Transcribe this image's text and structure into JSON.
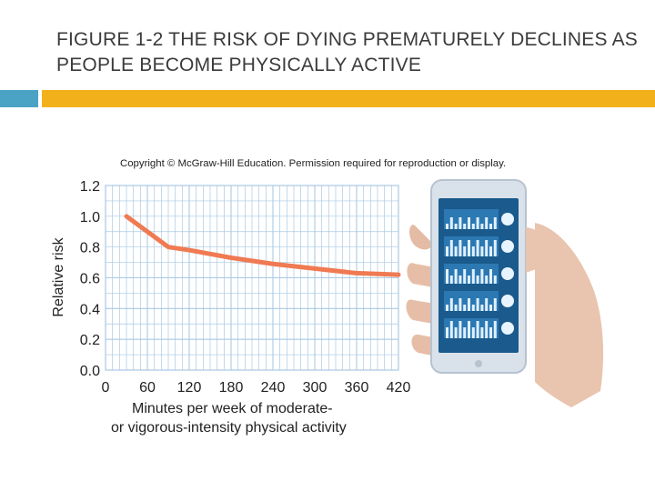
{
  "slide": {
    "title_prefix": "FIGURE 1-2",
    "title_rest": " THE RISK OF DYING PREMATURELY DECLINES AS PEOPLE BECOME PHYSICALLY ACTIVE"
  },
  "copyright": "Copyright © McGraw-Hill Education. Permission required for reproduction or display.",
  "colors": {
    "accent_blue": "#4aa3c4",
    "accent_gold": "#f2b11b",
    "line": "#f07a52",
    "grid": "#a9c9e3",
    "plot_bg": "#ffffff"
  },
  "chart_data": {
    "type": "line",
    "title": "",
    "xlabel": "Minutes per week of moderate-\nor vigorous-intensity physical activity",
    "ylabel": "Relative risk",
    "xlim": [
      0,
      420
    ],
    "ylim": [
      0,
      1.2
    ],
    "x_ticks": [
      "0",
      "60",
      "120",
      "180",
      "240",
      "300",
      "360",
      "420"
    ],
    "y_ticks": [
      "0.0",
      "0.2",
      "0.4",
      "0.6",
      "0.8",
      "1.0",
      "1.2"
    ],
    "grid": true,
    "series": [
      {
        "x": [
          30,
          90,
          120,
          180,
          240,
          300,
          360,
          420
        ],
        "y": [
          1.0,
          0.8,
          0.78,
          0.73,
          0.69,
          0.66,
          0.63,
          0.62
        ]
      }
    ]
  },
  "phone_image": {
    "icons": [
      "figure-stretch-icon",
      "footprints-icon",
      "figure-run-icon",
      "steps-count-icon",
      "figure-arms-up-icon"
    ]
  }
}
